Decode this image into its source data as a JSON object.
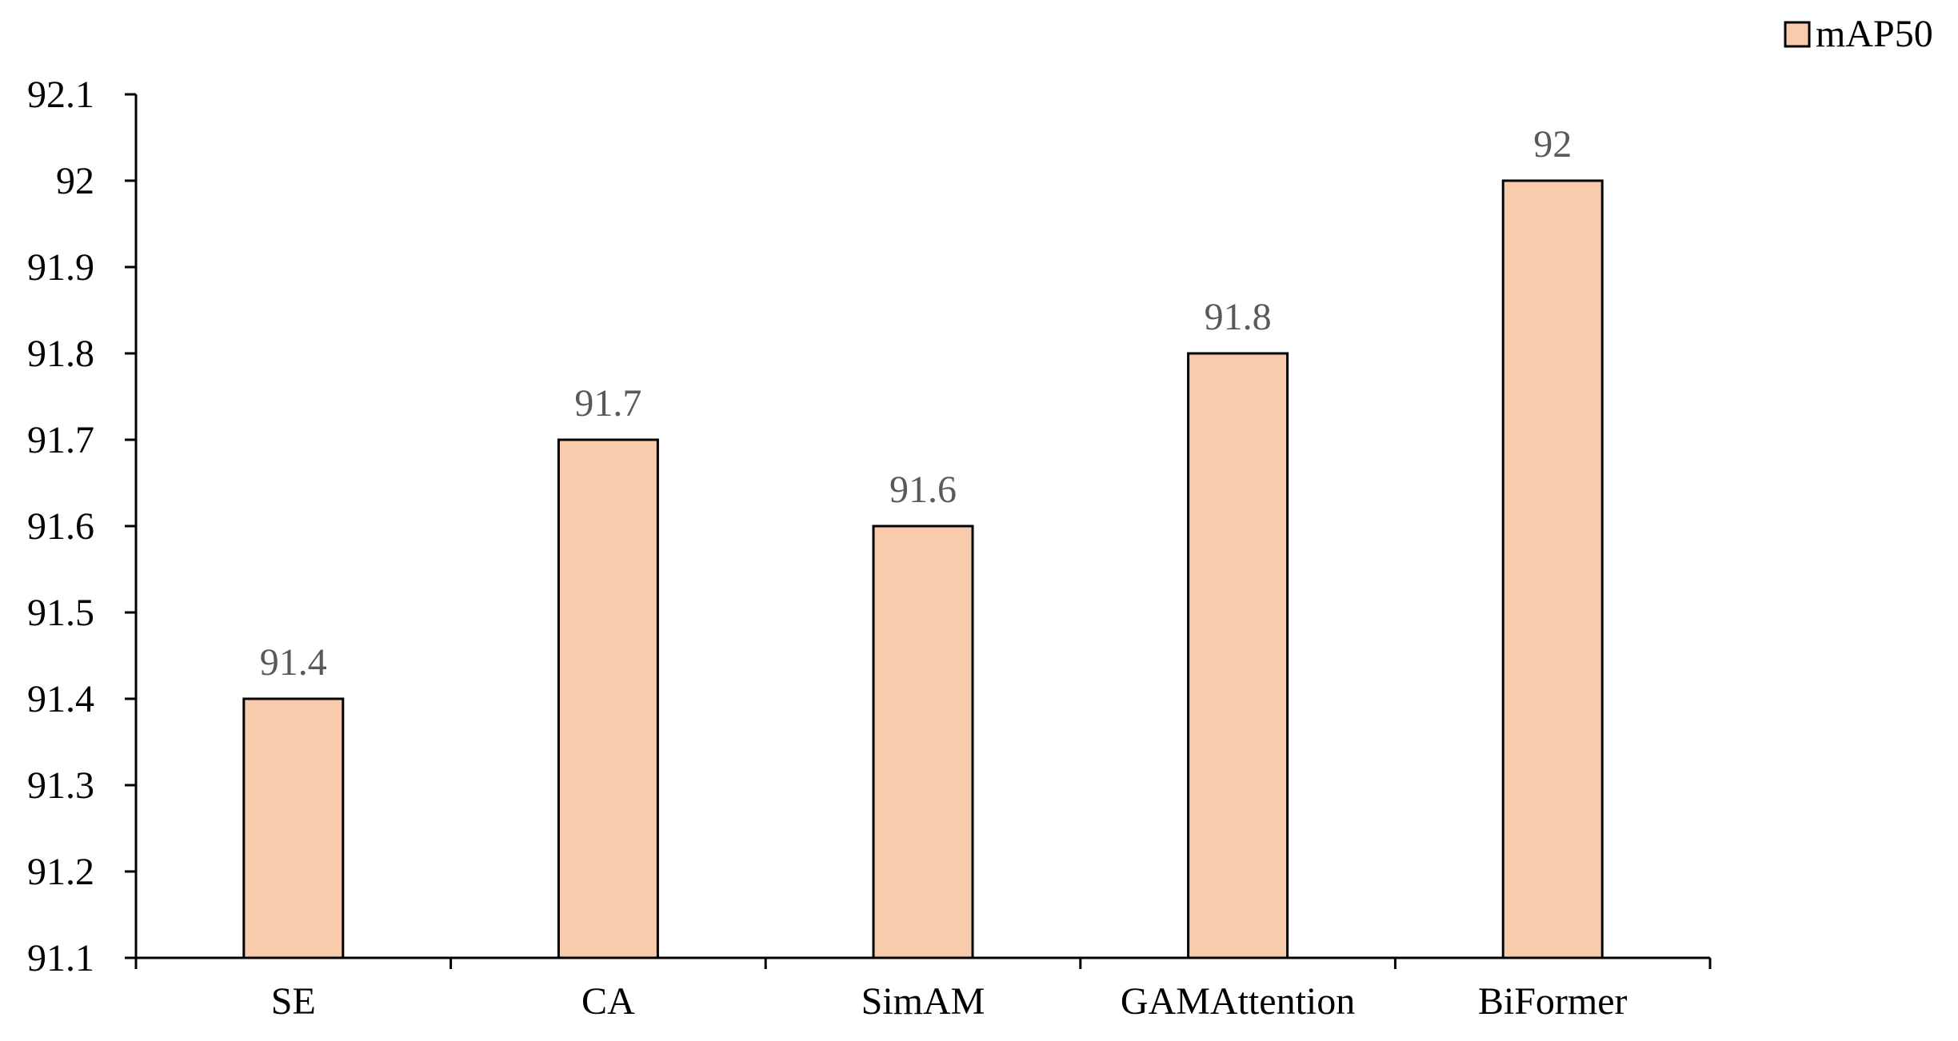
{
  "chart_data": {
    "type": "bar",
    "categories": [
      "SE",
      "CA",
      "SimAM",
      "GAMAttention",
      "BiFormer"
    ],
    "series": [
      {
        "name": "mAP50",
        "values": [
          91.4,
          91.7,
          91.6,
          91.8,
          92
        ],
        "labels": [
          "91.4",
          "91.7",
          "91.6",
          "91.8",
          "92"
        ],
        "color": "#f8cbad",
        "stroke": "#000000"
      }
    ],
    "title": "",
    "xlabel": "",
    "ylabel": "",
    "ylim": [
      91.1,
      92.1
    ],
    "yticks": [
      "91.1",
      "91.2",
      "91.3",
      "91.4",
      "91.5",
      "91.6",
      "91.7",
      "91.8",
      "91.9",
      "92",
      "92.1"
    ],
    "grid": false,
    "legend": "top-right",
    "data_label_color": "#595959"
  }
}
